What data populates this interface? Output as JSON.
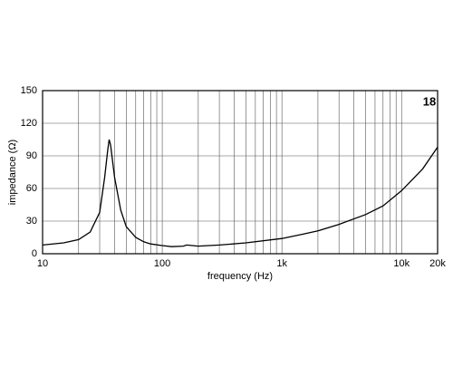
{
  "chart_data": {
    "type": "line",
    "y_label": "impedance (Ω)",
    "x_label": "frequency (Hz)",
    "logo": "18",
    "log_x": true,
    "grid": true,
    "color": "#000000",
    "x": [
      10,
      15,
      20,
      25,
      30,
      33,
      35,
      36,
      37,
      40,
      45,
      50,
      60,
      70,
      80,
      100,
      120,
      150,
      160,
      200,
      300,
      500,
      1000,
      1500,
      2000,
      3000,
      5000,
      7000,
      10000,
      15000,
      20000
    ],
    "values": [
      8,
      10,
      13,
      20,
      38,
      70,
      95,
      105,
      100,
      70,
      40,
      25,
      15,
      11,
      9,
      7.5,
      6.5,
      7,
      8,
      7,
      8,
      10,
      14,
      18,
      21,
      27,
      36,
      44,
      58,
      78,
      98
    ],
    "xlim": [
      10,
      20000
    ],
    "ylim": [
      0,
      150
    ],
    "xticks": [
      10,
      100,
      {
        "value": 1000,
        "label": "1k"
      },
      {
        "value": 10000,
        "label": "10k"
      },
      {
        "value": 20000,
        "label": "20k"
      }
    ],
    "yticks": [
      0,
      30,
      60,
      90,
      120,
      150
    ]
  }
}
